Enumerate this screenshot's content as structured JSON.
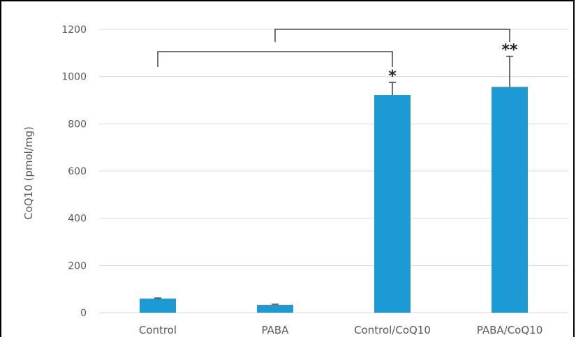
{
  "chart_data": {
    "type": "bar",
    "title": "",
    "xlabel": "",
    "ylabel": "CoQ10 (pmol/mg)",
    "categories": [
      "Control",
      "PABA",
      "Control/CoQ10",
      "PABA/CoQ10"
    ],
    "values": [
      60,
      33,
      922,
      956
    ],
    "error": [
      2,
      3,
      53,
      130
    ],
    "significance": [
      "",
      "",
      "*",
      "**"
    ],
    "comparisons": [
      {
        "from": "Control",
        "to": "Control/CoQ10"
      },
      {
        "from": "PABA",
        "to": "PABA/CoQ10"
      }
    ],
    "ylim": [
      0,
      1200
    ],
    "yticks": [
      0,
      200,
      400,
      600,
      800,
      1000,
      1200
    ],
    "grid": true,
    "legend": "none",
    "colors": {
      "bar": "#1b9ad6",
      "grid": "#d9d9d9",
      "axis_text": "#595959",
      "error_bar": "#404040",
      "bracket": "#262626"
    }
  }
}
